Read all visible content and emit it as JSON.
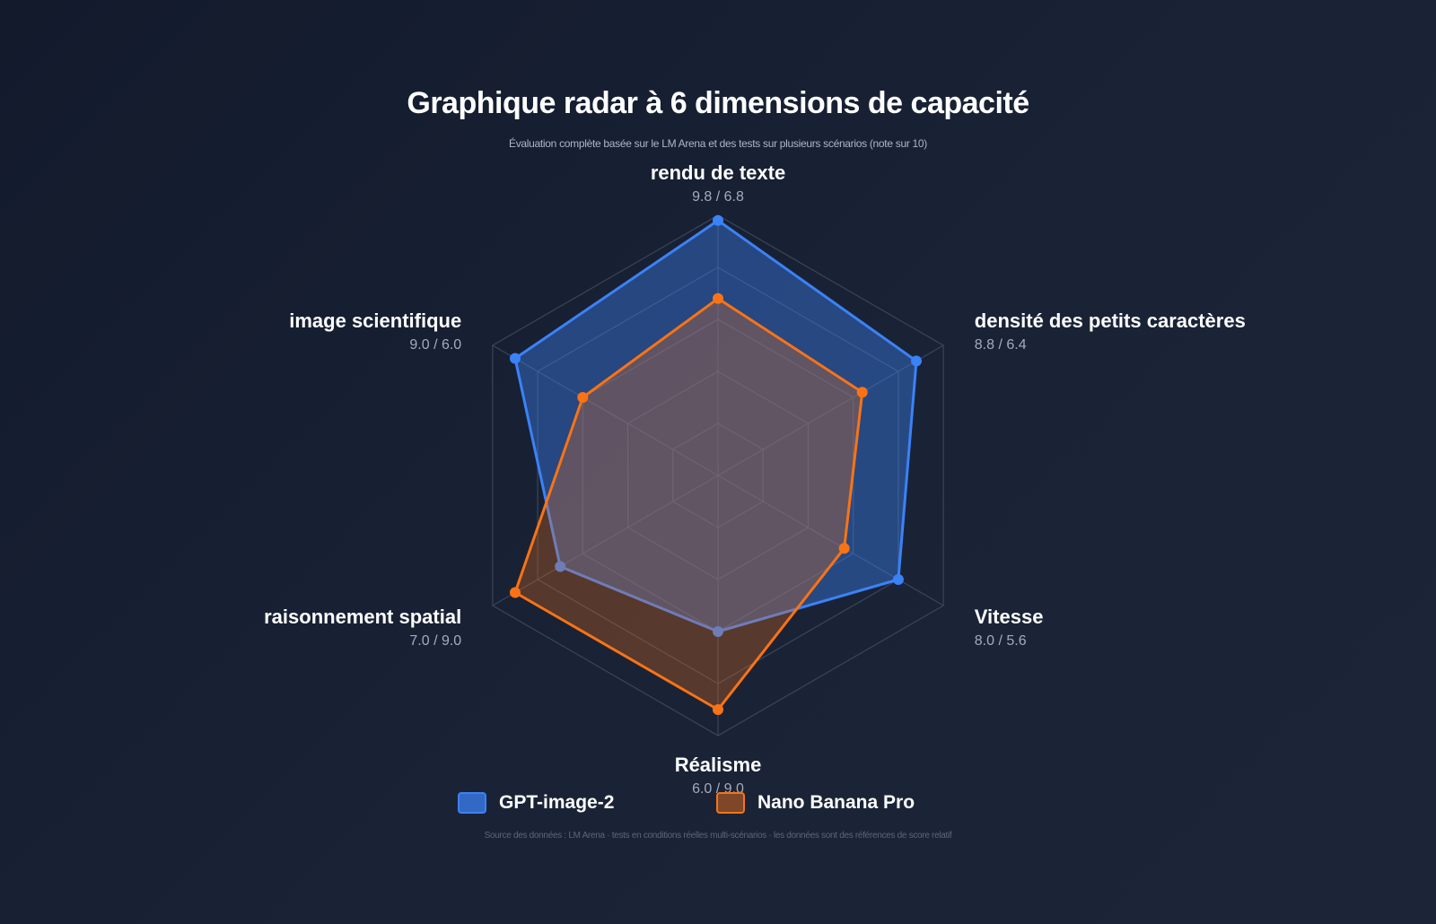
{
  "chart_data": {
    "type": "radar",
    "title": "Graphique radar à 6 dimensions de capacité",
    "subtitle": "Évaluation complète basée sur le LM Arena et des tests sur plusieurs scénarios (note sur 10)",
    "scale_max": 10,
    "grid_levels": [
      2,
      4,
      6,
      8,
      10
    ],
    "axes": [
      {
        "label": "rendu de texte",
        "value_text": "9.8 / 6.8"
      },
      {
        "label": "densité des petits caractères",
        "value_text": "8.8 / 6.4"
      },
      {
        "label": "Vitesse",
        "value_text": "8.0 / 5.6"
      },
      {
        "label": "Réalisme",
        "value_text": "6.0 / 9.0"
      },
      {
        "label": "raisonnement spatial",
        "value_text": "7.0 / 9.0"
      },
      {
        "label": "image scientifique",
        "value_text": "9.0 / 6.0"
      }
    ],
    "series": [
      {
        "name": "GPT-image-2",
        "color": "#3b82f6",
        "values": [
          9.8,
          8.8,
          8.0,
          6.0,
          7.0,
          9.0
        ]
      },
      {
        "name": "Nano Banana Pro",
        "color": "#f97316",
        "values": [
          6.8,
          6.4,
          5.6,
          9.0,
          9.0,
          6.0
        ]
      }
    ],
    "legend_position": "bottom",
    "footer": "Source des données : LM Arena · tests en conditions réelles multi-scénarios · les données sont des références de score relatif"
  }
}
